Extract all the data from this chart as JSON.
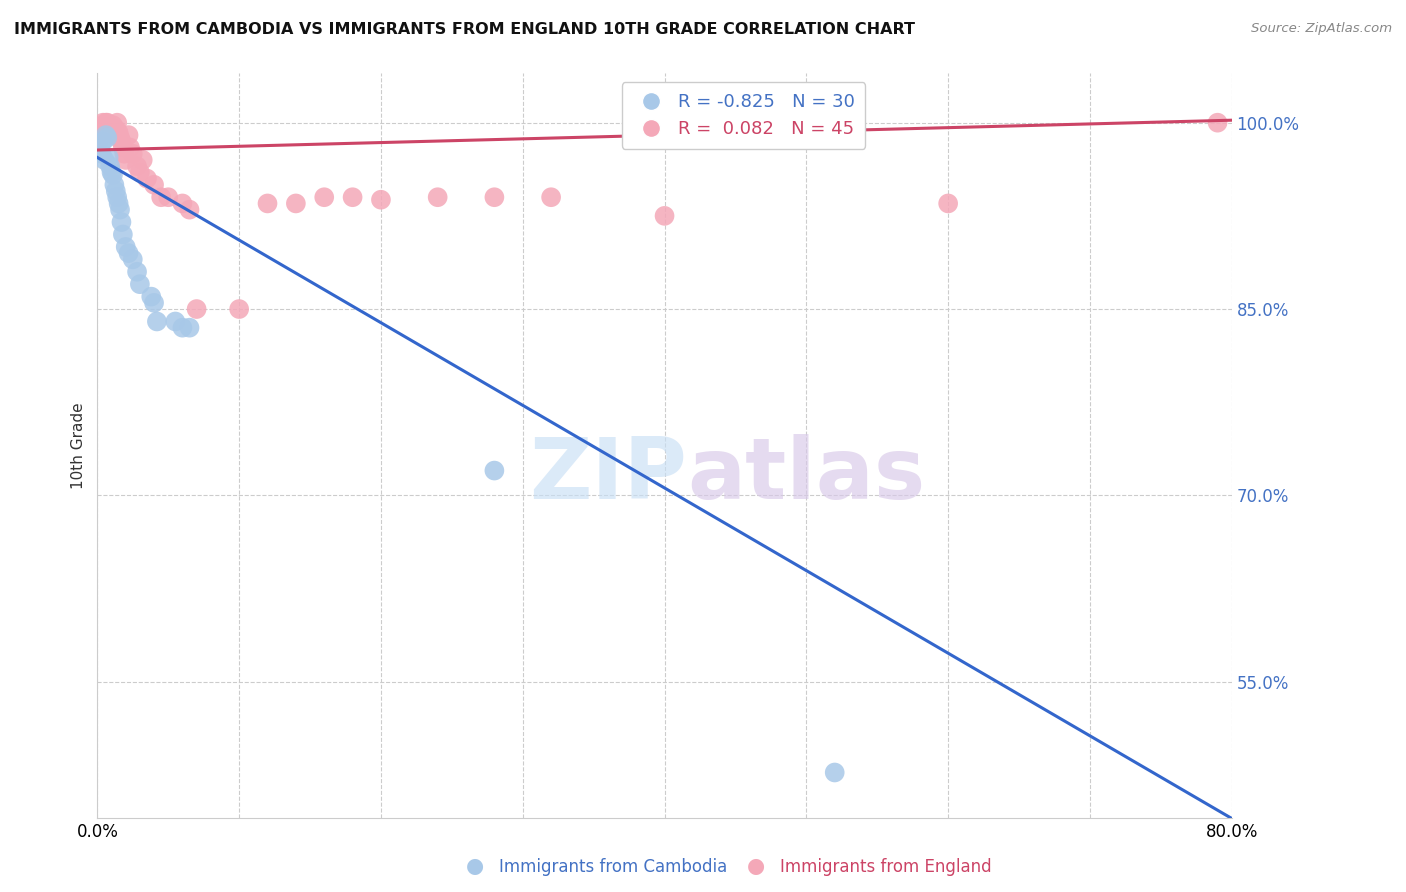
{
  "title": "IMMIGRANTS FROM CAMBODIA VS IMMIGRANTS FROM ENGLAND 10TH GRADE CORRELATION CHART",
  "source": "Source: ZipAtlas.com",
  "ylabel": "10th Grade",
  "xmin": 0.0,
  "xmax": 0.8,
  "ymin": 0.44,
  "ymax": 1.04,
  "yticks": [
    0.55,
    0.7,
    0.85,
    1.0
  ],
  "xticks": [
    0.0,
    0.1,
    0.2,
    0.3,
    0.4,
    0.5,
    0.6,
    0.7,
    0.8
  ],
  "grid_color": "#cccccc",
  "background_color": "#ffffff",
  "cambodia_color": "#a8c8e8",
  "england_color": "#f4a8b8",
  "trendline_cambodia_color": "#3366cc",
  "trendline_england_color": "#cc4466",
  "legend_r_cambodia": "-0.825",
  "legend_n_cambodia": "30",
  "legend_r_england": "0.082",
  "legend_n_england": "45",
  "cambodia_label": "Immigrants from Cambodia",
  "england_label": "Immigrants from England",
  "watermark_zip": "ZIP",
  "watermark_atlas": "atlas",
  "trendline_cambodia_x0": 0.0,
  "trendline_cambodia_y0": 0.972,
  "trendline_cambodia_x1": 0.8,
  "trendline_cambodia_y1": 0.44,
  "trendline_england_x0": 0.0,
  "trendline_england_y0": 0.978,
  "trendline_england_x1": 0.8,
  "trendline_england_y1": 1.002,
  "cambodia_x": [
    0.002,
    0.003,
    0.004,
    0.005,
    0.006,
    0.007,
    0.008,
    0.009,
    0.01,
    0.011,
    0.012,
    0.013,
    0.014,
    0.015,
    0.016,
    0.017,
    0.018,
    0.02,
    0.022,
    0.025,
    0.028,
    0.03,
    0.038,
    0.04,
    0.042,
    0.055,
    0.06,
    0.065,
    0.28,
    0.52
  ],
  "cambodia_y": [
    0.98,
    0.975,
    0.985,
    0.97,
    0.99,
    0.988,
    0.972,
    0.965,
    0.96,
    0.958,
    0.95,
    0.945,
    0.94,
    0.935,
    0.93,
    0.92,
    0.91,
    0.9,
    0.895,
    0.89,
    0.88,
    0.87,
    0.86,
    0.855,
    0.84,
    0.84,
    0.835,
    0.835,
    0.72,
    0.477
  ],
  "england_x": [
    0.001,
    0.002,
    0.003,
    0.004,
    0.005,
    0.006,
    0.007,
    0.008,
    0.009,
    0.01,
    0.011,
    0.012,
    0.013,
    0.014,
    0.015,
    0.016,
    0.017,
    0.018,
    0.019,
    0.02,
    0.022,
    0.023,
    0.025,
    0.028,
    0.03,
    0.032,
    0.035,
    0.04,
    0.045,
    0.05,
    0.06,
    0.065,
    0.07,
    0.1,
    0.12,
    0.14,
    0.16,
    0.18,
    0.2,
    0.24,
    0.28,
    0.32,
    0.4,
    0.6,
    0.79
  ],
  "england_y": [
    0.985,
    0.99,
    0.995,
    1.0,
    0.998,
    1.0,
    1.0,
    0.998,
    0.995,
    0.993,
    0.998,
    0.99,
    0.995,
    1.0,
    0.992,
    0.988,
    0.985,
    0.98,
    0.975,
    0.97,
    0.99,
    0.98,
    0.975,
    0.965,
    0.96,
    0.97,
    0.955,
    0.95,
    0.94,
    0.94,
    0.935,
    0.93,
    0.85,
    0.85,
    0.935,
    0.935,
    0.94,
    0.94,
    0.938,
    0.94,
    0.94,
    0.94,
    0.925,
    0.935,
    1.0
  ]
}
